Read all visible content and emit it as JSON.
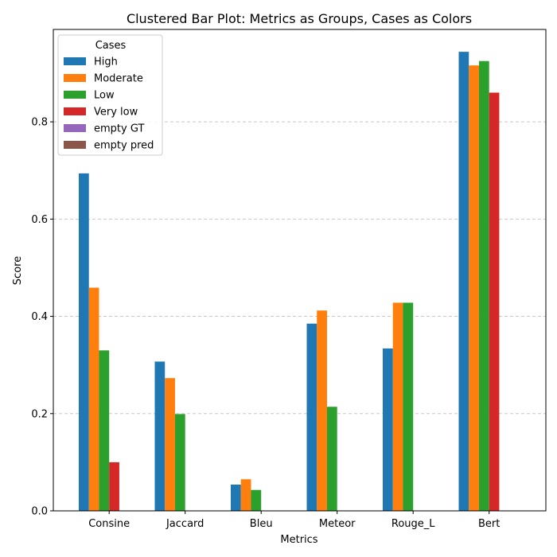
{
  "chart_data": {
    "type": "bar",
    "title": "Clustered Bar Plot: Metrics as Groups, Cases as Colors",
    "xlabel": "Metrics",
    "ylabel": "Score",
    "categories": [
      "Consine",
      "Jaccard",
      "Bleu",
      "Meteor",
      "Rouge_L",
      "Bert"
    ],
    "ylim": [
      0,
      0.99
    ],
    "yticks": [
      0.0,
      0.2,
      0.4,
      0.6,
      0.8
    ],
    "ytick_labels": [
      "0.0",
      "0.2",
      "0.4",
      "0.6",
      "0.8"
    ],
    "grid": "horizontal dashed",
    "legend": {
      "title": "Cases",
      "placement": "top-left"
    },
    "series": [
      {
        "name": "High",
        "color": "#1f77b4",
        "values": [
          0.694,
          0.307,
          0.054,
          0.385,
          0.334,
          0.944
        ]
      },
      {
        "name": "Moderate",
        "color": "#ff7f0e",
        "values": [
          0.459,
          0.273,
          0.065,
          0.412,
          0.428,
          0.916
        ]
      },
      {
        "name": "Low",
        "color": "#2ca02c",
        "values": [
          0.33,
          0.199,
          0.043,
          0.214,
          0.428,
          0.925
        ]
      },
      {
        "name": "Very low",
        "color": "#d62728",
        "values": [
          0.1,
          0,
          0,
          0,
          0,
          0.86
        ]
      },
      {
        "name": "empty GT",
        "color": "#9467bd",
        "values": [
          0,
          0,
          0,
          0,
          0,
          0
        ]
      },
      {
        "name": "empty pred",
        "color": "#8c564b",
        "values": [
          0,
          0,
          0,
          0,
          0,
          0
        ]
      }
    ]
  }
}
